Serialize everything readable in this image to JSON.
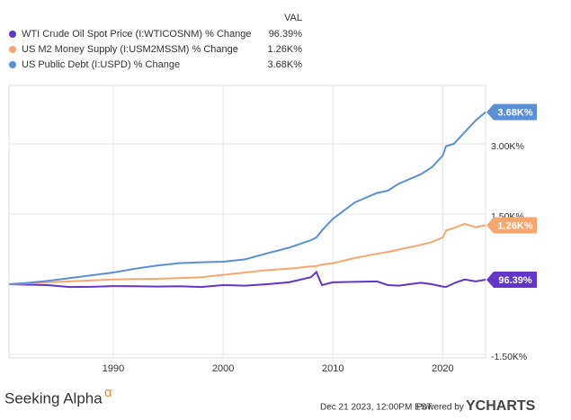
{
  "chart_data": {
    "type": "line",
    "legend_header": "VAL",
    "x": [
      1980.5,
      1982,
      1984,
      1986,
      1988,
      1990,
      1992,
      1994,
      1996,
      1998,
      2000,
      2002,
      2004,
      2006,
      2008,
      2008.5,
      2009,
      2010,
      2012,
      2014,
      2015,
      2016,
      2018,
      2019,
      2020,
      2020.3,
      2021,
      2022,
      2023,
      2023.9
    ],
    "series": [
      {
        "name": "WTI Crude Oil Spot Price (I:WTICOSNM) % Change",
        "color": "#6435c9",
        "values": [
          0,
          -10,
          -20,
          -60,
          -55,
          -40,
          -45,
          -50,
          -45,
          -60,
          -20,
          -30,
          0,
          40,
          150,
          260,
          -20,
          40,
          50,
          60,
          -20,
          -30,
          30,
          0,
          -50,
          -60,
          20,
          100,
          60,
          96.39
        ],
        "value_labels": "96.39%"
      },
      {
        "name": "US M2 Money Supply (I:USM2MSSM) % Change",
        "color": "#f8a66f",
        "values": [
          0,
          15,
          40,
          60,
          80,
          100,
          110,
          115,
          130,
          150,
          200,
          250,
          300,
          330,
          380,
          390,
          420,
          450,
          560,
          650,
          690,
          740,
          840,
          900,
          1000,
          1150,
          1200,
          1290,
          1220,
          1260
        ],
        "value_labels": "1.26K%"
      },
      {
        "name": "US Public Debt (I:USPD) % Change",
        "color": "#5a8fd8",
        "values": [
          0,
          25,
          70,
          130,
          190,
          250,
          330,
          400,
          450,
          470,
          480,
          530,
          660,
          780,
          940,
          1000,
          1150,
          1400,
          1750,
          1950,
          2000,
          2150,
          2350,
          2500,
          2750,
          2950,
          3000,
          3250,
          3500,
          3680
        ],
        "value_labels": "3.68K%"
      }
    ],
    "xlim": [
      1980.5,
      2023.9
    ],
    "xticks": [
      1990,
      2000,
      2010,
      2020
    ],
    "ylim": [
      -1577,
      4250
    ],
    "yticks": [
      {
        "value": -1500,
        "label": "-1.50K%"
      },
      {
        "value": 1500,
        "label": "1.50K%"
      },
      {
        "value": 3000,
        "label": "3.00K%"
      }
    ],
    "grid": true
  },
  "footer": {
    "brand": "Seeking Alpha",
    "alpha": "α",
    "timestamp": "Dec 21 2023, 12:00PM EST.",
    "powered_by": "Powered by",
    "ycharts": "YCHARTS"
  }
}
